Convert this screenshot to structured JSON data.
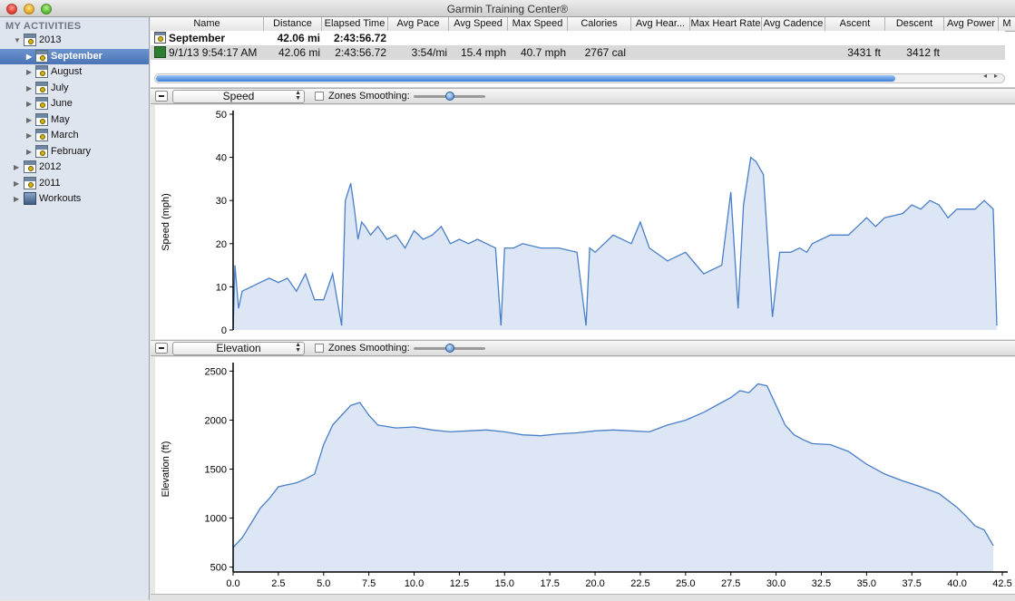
{
  "window": {
    "title": "Garmin Training Center®"
  },
  "sidebar": {
    "header": "MY ACTIVITIES",
    "items": [
      {
        "label": "2013",
        "expanded": true,
        "icon": "calendar-icon"
      },
      {
        "label": "September",
        "selected": true,
        "icon": "calendar-icon"
      },
      {
        "label": "August",
        "icon": "calendar-icon"
      },
      {
        "label": "July",
        "icon": "calendar-icon"
      },
      {
        "label": "June",
        "icon": "calendar-icon"
      },
      {
        "label": "May",
        "icon": "calendar-icon"
      },
      {
        "label": "March",
        "icon": "calendar-icon"
      },
      {
        "label": "February",
        "icon": "calendar-icon"
      },
      {
        "label": "2012",
        "icon": "calendar-icon"
      },
      {
        "label": "2011",
        "icon": "calendar-icon"
      },
      {
        "label": "Workouts",
        "icon": "workouts-icon"
      }
    ]
  },
  "table": {
    "columns": [
      "Name",
      "Distance",
      "Elapsed Time",
      "Avg Pace",
      "Avg Speed",
      "Max Speed",
      "Calories",
      "Avg Hear...",
      "Max Heart Rate",
      "Avg Cadence",
      "Ascent",
      "Descent",
      "Avg Power",
      "M"
    ],
    "rows": [
      {
        "name": "September",
        "distance": "42.06 mi",
        "elapsed": "2:43:56.72",
        "pace": "",
        "avg_speed": "",
        "max_speed": "",
        "calories": "",
        "avg_hr": "",
        "max_hr": "",
        "cadence": "",
        "ascent": "",
        "descent": "",
        "power": ""
      },
      {
        "name": "9/1/13 9:54:17 AM",
        "distance": "42.06 mi",
        "elapsed": "2:43:56.72",
        "pace": "3:54/mi",
        "avg_speed": "15.4 mph",
        "max_speed": "40.7 mph",
        "calories": "2767 cal",
        "avg_hr": "",
        "max_hr": "",
        "cadence": "",
        "ascent": "3431 ft",
        "descent": "3412 ft",
        "power": ""
      }
    ],
    "scroll_left": "◂",
    "scroll_right": "▸"
  },
  "speed_pane": {
    "metric": "Speed",
    "zones_label": "Zones",
    "smoothing_label": "Smoothing:"
  },
  "elevation_pane": {
    "metric": "Elevation",
    "zones_label": "Zones",
    "smoothing_label": "Smoothing:"
  },
  "colors": {
    "line": "#4a7fc8",
    "fill": "#dce6f4",
    "selection": "#4a73b6"
  },
  "chart_data": [
    {
      "type": "area",
      "ylabel": "Speed (mph)",
      "xlabel": "",
      "ylim": [
        0,
        50
      ],
      "yticks": [
        0,
        10,
        20,
        30,
        40,
        50
      ],
      "xlim": [
        0,
        42.5
      ],
      "x": [
        0,
        0.1,
        0.3,
        0.5,
        1,
        1.5,
        2,
        2.5,
        3,
        3.5,
        4,
        4.5,
        5,
        5.5,
        6,
        6.2,
        6.5,
        6.7,
        6.9,
        7.1,
        7.3,
        7.6,
        8,
        8.5,
        9,
        9.5,
        10,
        10.5,
        11,
        11.5,
        12,
        12.5,
        13,
        13.5,
        14,
        14.5,
        14.8,
        15,
        15.5,
        16,
        17,
        18,
        19,
        19.5,
        19.7,
        20,
        21,
        22,
        22.5,
        23,
        24,
        25,
        26,
        27,
        27.5,
        27.9,
        28.2,
        28.6,
        28.9,
        29.3,
        29.8,
        30.2,
        30.8,
        31.3,
        31.7,
        32,
        32.5,
        33,
        34,
        34.5,
        35,
        35.5,
        36,
        37,
        37.5,
        38,
        38.5,
        39,
        39.5,
        40,
        41,
        41.5,
        42,
        42.2
      ],
      "series": [
        {
          "values": [
            0,
            15,
            5,
            9,
            10,
            11,
            12,
            11,
            12,
            9,
            13,
            7,
            7,
            13,
            1,
            30,
            34,
            28,
            21,
            25,
            24,
            22,
            24,
            21,
            22,
            19,
            23,
            21,
            22,
            24,
            20,
            21,
            20,
            21,
            20,
            19,
            1,
            19,
            19,
            20,
            19,
            19,
            18,
            1,
            19,
            18,
            22,
            20,
            25,
            19,
            16,
            18,
            13,
            15,
            32,
            5,
            29,
            40,
            39,
            36,
            3,
            18,
            18,
            19,
            18,
            20,
            21,
            22,
            22,
            24,
            26,
            24,
            26,
            27,
            29,
            28,
            30,
            29,
            26,
            28,
            28,
            30,
            28,
            1
          ]
        }
      ]
    },
    {
      "type": "area",
      "ylabel": "Elevation (ft)",
      "xlabel": "",
      "ylim": [
        450,
        2550
      ],
      "yticks": [
        500,
        1000,
        1500,
        2000,
        2500
      ],
      "xlim": [
        0,
        42.5
      ],
      "xticks": [
        0.0,
        2.5,
        5.0,
        7.5,
        10.0,
        12.5,
        15.0,
        17.5,
        20.0,
        22.5,
        25.0,
        27.5,
        30.0,
        32.5,
        35.0,
        37.5,
        40.0,
        42.5
      ],
      "x": [
        0,
        0.5,
        1,
        1.5,
        2,
        2.5,
        3,
        3.5,
        4,
        4.5,
        5,
        5.5,
        6,
        6.5,
        7,
        7.5,
        8,
        9,
        10,
        11,
        12,
        13,
        14,
        15,
        16,
        17,
        18,
        19,
        20,
        21,
        22,
        23,
        24,
        25,
        26,
        27,
        27.5,
        28,
        28.5,
        29,
        29.5,
        30,
        30.5,
        31,
        31.5,
        32,
        33,
        34,
        35,
        36,
        37,
        38,
        39,
        40,
        40.5,
        41,
        41.5,
        42
      ],
      "series": [
        {
          "values": [
            700,
            800,
            950,
            1100,
            1200,
            1320,
            1340,
            1360,
            1400,
            1450,
            1750,
            1950,
            2050,
            2150,
            2180,
            2050,
            1950,
            1920,
            1930,
            1900,
            1880,
            1890,
            1900,
            1880,
            1850,
            1840,
            1860,
            1870,
            1890,
            1900,
            1890,
            1880,
            1950,
            2000,
            2080,
            2180,
            2230,
            2300,
            2280,
            2370,
            2350,
            2150,
            1950,
            1850,
            1800,
            1760,
            1750,
            1680,
            1550,
            1450,
            1380,
            1320,
            1250,
            1110,
            1020,
            920,
            880,
            720
          ]
        }
      ]
    }
  ]
}
